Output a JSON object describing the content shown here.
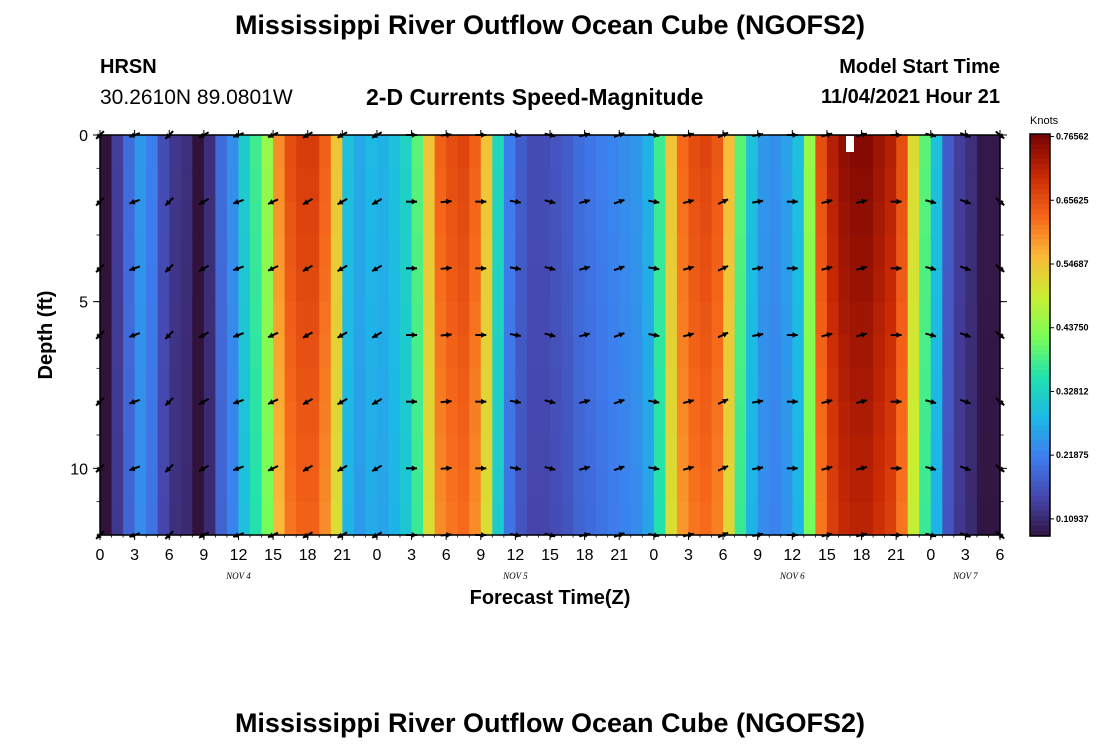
{
  "header": {
    "title": "Mississippi River Outflow Ocean Cube (NGOFS2)",
    "station_id": "HRSN",
    "coordinates": "30.2610N  89.0801W",
    "subtitle": "2-D Currents Speed-Magnitude",
    "model_start_label": "Model Start Time",
    "model_start_value": "11/04/2021 Hour 21"
  },
  "footer": {
    "title": "Mississippi River Outflow Ocean Cube (NGOFS2)"
  },
  "chart_data": {
    "type": "heatmap",
    "xlabel": "Forecast Time(Z)",
    "ylabel": "Depth (ft)",
    "x_start_hour": 0,
    "x_end_hour": 78,
    "x_ticks": [
      "0",
      "3",
      "6",
      "9",
      "12",
      "15",
      "18",
      "21",
      "0",
      "3",
      "6",
      "9",
      "12",
      "15",
      "18",
      "21",
      "0",
      "3",
      "6",
      "9",
      "12",
      "15",
      "18",
      "21",
      "0",
      "3",
      "6"
    ],
    "day_labels": [
      {
        "text": "NOV 4",
        "hour": 12
      },
      {
        "text": "NOV 5",
        "hour": 36
      },
      {
        "text": "NOV 6",
        "hour": 60
      },
      {
        "text": "NOV 7",
        "hour": 75
      }
    ],
    "y_ticks": [
      0,
      5,
      10
    ],
    "ylim": [
      0,
      12
    ],
    "colorbar": {
      "label": "Knots",
      "min": 0.08,
      "max": 0.77,
      "ticks": [
        "0.76562",
        "0.65625",
        "0.54687",
        "0.43750",
        "0.32812",
        "0.21875",
        "0.10937"
      ],
      "tick_values": [
        0.76562,
        0.65625,
        0.54687,
        0.4375,
        0.32812,
        0.21875,
        0.10937
      ]
    },
    "speed_profile": {
      "hours": [
        0,
        1,
        2,
        3,
        4,
        5,
        6,
        7,
        8,
        9,
        10,
        11,
        12,
        13,
        14,
        15,
        16,
        17,
        18,
        19,
        20,
        21,
        22,
        23,
        24,
        25,
        26,
        27,
        28,
        29,
        30,
        31,
        32,
        33,
        34,
        35,
        36,
        37,
        38,
        39,
        40,
        41,
        42,
        43,
        44,
        45,
        46,
        47,
        48,
        49,
        50,
        51,
        52,
        53,
        54,
        55,
        56,
        57,
        58,
        59,
        60,
        61,
        62,
        63,
        64,
        65,
        66,
        67,
        68,
        69,
        70,
        71,
        72,
        73,
        74,
        75,
        76,
        77,
        78
      ],
      "speed": [
        0.06,
        0.14,
        0.2,
        0.25,
        0.22,
        0.16,
        0.13,
        0.12,
        0.08,
        0.12,
        0.2,
        0.24,
        0.32,
        0.38,
        0.45,
        0.6,
        0.66,
        0.68,
        0.68,
        0.64,
        0.55,
        0.3,
        0.27,
        0.29,
        0.28,
        0.3,
        0.33,
        0.4,
        0.55,
        0.64,
        0.66,
        0.67,
        0.64,
        0.55,
        0.34,
        0.22,
        0.18,
        0.16,
        0.16,
        0.17,
        0.18,
        0.2,
        0.21,
        0.22,
        0.23,
        0.24,
        0.25,
        0.28,
        0.38,
        0.55,
        0.63,
        0.66,
        0.67,
        0.65,
        0.56,
        0.4,
        0.3,
        0.25,
        0.24,
        0.26,
        0.3,
        0.45,
        0.66,
        0.72,
        0.75,
        0.76,
        0.76,
        0.74,
        0.72,
        0.66,
        0.52,
        0.4,
        0.3,
        0.18,
        0.14,
        0.12,
        0.09,
        0.09,
        0.1
      ]
    },
    "vector_directions": {
      "hours": [
        0,
        3,
        6,
        9,
        12,
        15,
        18,
        21,
        24,
        27,
        30,
        33,
        36,
        39,
        42,
        45,
        48,
        51,
        54,
        57,
        60,
        63,
        66,
        69,
        72,
        75,
        78
      ],
      "direction_deg": [
        225,
        200,
        225,
        210,
        200,
        205,
        210,
        210,
        210,
        0,
        5,
        0,
        -10,
        -15,
        15,
        20,
        -10,
        15,
        25,
        10,
        0,
        15,
        15,
        0,
        -15,
        -20,
        -40
      ]
    }
  }
}
